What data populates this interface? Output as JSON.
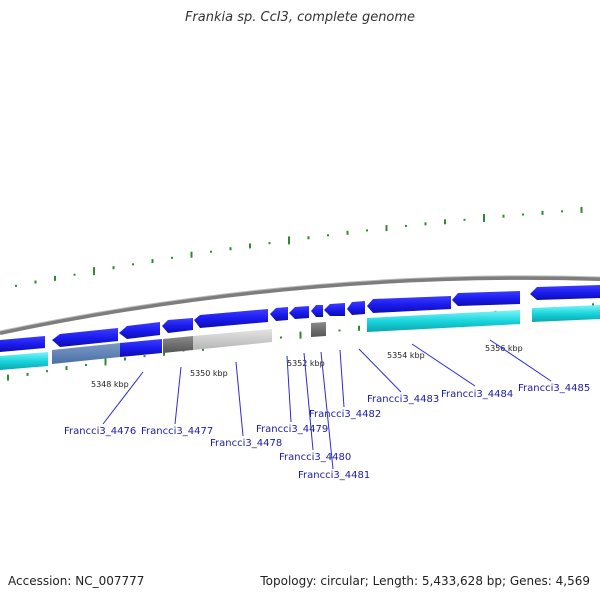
{
  "title": "Frankia sp. CcI3, complete genome",
  "accession": "Accession: NC_007777",
  "summary": "Topology: circular; Length: 5,433,628 bp; Genes: 4,569",
  "colors": {
    "backbone": "#8a8a8a",
    "forward_gene": "#1c1cf0",
    "reverse_gene": "#1ad5dd",
    "pseudo_gene": "#8c8c8c",
    "gc_tick": "#2d8a2d",
    "label": "#1a1aa8"
  },
  "scale_labels": [
    "5348 kbp",
    "5350 kbp",
    "5352 kbp",
    "5354 kbp",
    "5356 kbp"
  ],
  "gene_labels": [
    "Francci3_4476",
    "Francci3_4477",
    "Francci3_4478",
    "Francci3_4479",
    "Francci3_4480",
    "Francci3_4481",
    "Francci3_4482",
    "Francci3_4483",
    "Francci3_4484",
    "Francci3_4485"
  ]
}
